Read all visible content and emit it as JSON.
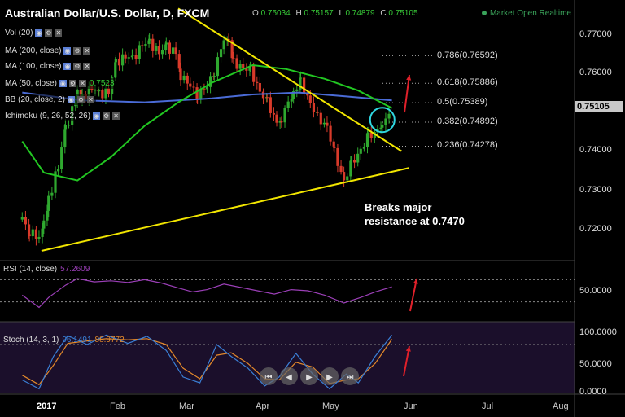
{
  "header": {
    "title": "Australian Dollar/U.S. Dollar, D, FXCM",
    "o_label": "O",
    "o": "0.75034",
    "h_label": "H",
    "h": "0.75157",
    "l_label": "L",
    "l": "0.74879",
    "c_label": "C",
    "c": "0.75105",
    "market_status": "Market Open Realtime"
  },
  "indicators": [
    {
      "label": "Vol (20)",
      "value": ""
    },
    {
      "label": "MA (200, close)",
      "value": ""
    },
    {
      "label": "MA (100, close)",
      "value": ""
    },
    {
      "label": "MA (50, close)",
      "value": "0.7523"
    },
    {
      "label": "BB (20, close, 2)",
      "value": ""
    },
    {
      "label": "Ichimoku (9, 26, 52, 26)",
      "value": ""
    }
  ],
  "rsi": {
    "label": "RSI (14, close)",
    "value": "57.2609"
  },
  "stoch": {
    "label": "Stoch (14, 3, 1)",
    "k": "96.1491",
    "d": "88.9772"
  },
  "fib_levels": [
    {
      "label": "0.786(0.76592)",
      "price": 0.76592
    },
    {
      "label": "0.618(0.75886)",
      "price": 0.75886
    },
    {
      "label": "0.5(0.75389)",
      "price": 0.75389
    },
    {
      "label": "0.382(0.74892)",
      "price": 0.74892
    },
    {
      "label": "0.236(0.74278)",
      "price": 0.74278
    }
  ],
  "annotation": {
    "line1": "Breaks major",
    "line2": "resistance at 0.7470"
  },
  "y_axis": {
    "labels": [
      "0.77000",
      "0.76000",
      "0.75000",
      "0.74000",
      "0.73000",
      "0.72000"
    ],
    "current": "0.75105"
  },
  "rsi_axis": {
    "labels": [
      "50.0000"
    ]
  },
  "stoch_axis": {
    "labels": [
      "100.0000",
      "50.0000",
      "0.0000"
    ]
  },
  "x_axis": {
    "labels": [
      "2017",
      "Feb",
      "Mar",
      "Apr",
      "May",
      "Jun",
      "Jul",
      "Aug"
    ]
  },
  "colors": {
    "up": "#2fa82f",
    "down": "#d83a2a",
    "ma50": "#22c722",
    "ma100": "#4a6bd6",
    "trend": "#f2e600",
    "rsi": "#9b3fb7",
    "stoch_k": "#3a7fd6",
    "stoch_d": "#e3892b",
    "arrow": "#e0202a"
  },
  "chart_data": {
    "type": "candlestick",
    "title": "Australian Dollar/U.S. Dollar, D, FXCM",
    "ylim": [
      0.714,
      0.7755
    ],
    "x_range": [
      "2017-01-01",
      "2017-08-10"
    ],
    "trendlines": [
      {
        "name": "descending resistance",
        "from": [
          "2017-03-01",
          0.778
        ],
        "to": [
          "2017-06-02",
          0.7415
        ]
      },
      {
        "name": "ascending support",
        "from": [
          "2017-01-03",
          0.716
        ],
        "to": [
          "2017-06-05",
          0.7372
        ]
      }
    ],
    "close_path": [
      [
        "2016-12-26",
        0.724
      ],
      [
        "2016-12-29",
        0.721
      ],
      [
        "2017-01-02",
        0.719
      ],
      [
        "2017-01-04",
        0.7225
      ],
      [
        "2017-01-06",
        0.729
      ],
      [
        "2017-01-10",
        0.738
      ],
      [
        "2017-01-13",
        0.747
      ],
      [
        "2017-01-18",
        0.756
      ],
      [
        "2017-01-20",
        0.755
      ],
      [
        "2017-01-24",
        0.758
      ],
      [
        "2017-01-27",
        0.756
      ],
      [
        "2017-01-31",
        0.757
      ],
      [
        "2017-02-03",
        0.764
      ],
      [
        "2017-02-07",
        0.766
      ],
      [
        "2017-02-10",
        0.765
      ],
      [
        "2017-02-14",
        0.769
      ],
      [
        "2017-02-17",
        0.769
      ],
      [
        "2017-02-21",
        0.767
      ],
      [
        "2017-02-24",
        0.768
      ],
      [
        "2017-02-28",
        0.767
      ],
      [
        "2017-03-02",
        0.761
      ],
      [
        "2017-03-06",
        0.758
      ],
      [
        "2017-03-09",
        0.756
      ],
      [
        "2017-03-13",
        0.758
      ],
      [
        "2017-03-16",
        0.762
      ],
      [
        "2017-03-20",
        0.77
      ],
      [
        "2017-03-22",
        0.769
      ],
      [
        "2017-03-24",
        0.764
      ],
      [
        "2017-03-28",
        0.763
      ],
      [
        "2017-03-31",
        0.762
      ],
      [
        "2017-04-04",
        0.757
      ],
      [
        "2017-04-07",
        0.754
      ],
      [
        "2017-04-11",
        0.749
      ],
      [
        "2017-04-13",
        0.75
      ],
      [
        "2017-04-18",
        0.757
      ],
      [
        "2017-04-21",
        0.759
      ],
      [
        "2017-04-25",
        0.754
      ],
      [
        "2017-04-28",
        0.75
      ],
      [
        "2017-05-02",
        0.748
      ],
      [
        "2017-05-05",
        0.741
      ],
      [
        "2017-05-09",
        0.734
      ],
      [
        "2017-05-12",
        0.738
      ],
      [
        "2017-05-16",
        0.742
      ],
      [
        "2017-05-19",
        0.745
      ],
      [
        "2017-05-23",
        0.747
      ],
      [
        "2017-05-25",
        0.749
      ],
      [
        "2017-05-29",
        0.751
      ]
    ],
    "ma50": [
      [
        "2016-12-26",
        0.744
      ],
      [
        "2017-01-04",
        0.736
      ],
      [
        "2017-01-18",
        0.734
      ],
      [
        "2017-02-01",
        0.74
      ],
      [
        "2017-02-15",
        0.748
      ],
      [
        "2017-03-01",
        0.754
      ],
      [
        "2017-03-15",
        0.759
      ],
      [
        "2017-04-01",
        0.7635
      ],
      [
        "2017-04-15",
        0.7625
      ],
      [
        "2017-05-01",
        0.76
      ],
      [
        "2017-05-15",
        0.757
      ],
      [
        "2017-05-29",
        0.7525
      ]
    ],
    "ma100": [
      [
        "2016-12-26",
        0.7565
      ],
      [
        "2017-01-20",
        0.7545
      ],
      [
        "2017-02-15",
        0.754
      ],
      [
        "2017-03-15",
        0.755
      ],
      [
        "2017-04-01",
        0.756
      ],
      [
        "2017-04-20",
        0.7565
      ],
      [
        "2017-05-10",
        0.7555
      ],
      [
        "2017-05-29",
        0.7545
      ]
    ],
    "rsi": {
      "ylim": [
        0,
        100
      ],
      "values": [
        [
          "2016-12-26",
          42
        ],
        [
          "2017-01-02",
          20
        ],
        [
          "2017-01-06",
          38
        ],
        [
          "2017-01-13",
          60
        ],
        [
          "2017-01-18",
          72
        ],
        [
          "2017-01-25",
          66
        ],
        [
          "2017-02-01",
          68
        ],
        [
          "2017-02-08",
          65
        ],
        [
          "2017-02-15",
          70
        ],
        [
          "2017-02-22",
          64
        ],
        [
          "2017-03-01",
          55
        ],
        [
          "2017-03-07",
          48
        ],
        [
          "2017-03-13",
          52
        ],
        [
          "2017-03-20",
          62
        ],
        [
          "2017-03-27",
          56
        ],
        [
          "2017-04-03",
          50
        ],
        [
          "2017-04-10",
          44
        ],
        [
          "2017-04-17",
          52
        ],
        [
          "2017-04-24",
          50
        ],
        [
          "2017-05-01",
          42
        ],
        [
          "2017-05-09",
          28
        ],
        [
          "2017-05-16",
          38
        ],
        [
          "2017-05-22",
          48
        ],
        [
          "2017-05-29",
          57
        ]
      ]
    },
    "stoch": {
      "ylim": [
        0,
        100
      ],
      "k": [
        [
          "2016-12-26",
          20
        ],
        [
          "2017-01-02",
          5
        ],
        [
          "2017-01-08",
          60
        ],
        [
          "2017-01-14",
          95
        ],
        [
          "2017-01-22",
          80
        ],
        [
          "2017-01-30",
          96
        ],
        [
          "2017-02-08",
          82
        ],
        [
          "2017-02-16",
          94
        ],
        [
          "2017-02-24",
          70
        ],
        [
          "2017-03-03",
          25
        ],
        [
          "2017-03-10",
          15
        ],
        [
          "2017-03-17",
          80
        ],
        [
          "2017-03-23",
          60
        ],
        [
          "2017-03-30",
          40
        ],
        [
          "2017-04-06",
          10
        ],
        [
          "2017-04-12",
          25
        ],
        [
          "2017-04-19",
          65
        ],
        [
          "2017-04-26",
          30
        ],
        [
          "2017-05-03",
          5
        ],
        [
          "2017-05-10",
          30
        ],
        [
          "2017-05-15",
          15
        ],
        [
          "2017-05-22",
          60
        ],
        [
          "2017-05-29",
          96
        ]
      ],
      "d": [
        [
          "2016-12-26",
          28
        ],
        [
          "2017-01-02",
          12
        ],
        [
          "2017-01-08",
          45
        ],
        [
          "2017-01-14",
          82
        ],
        [
          "2017-01-22",
          86
        ],
        [
          "2017-01-30",
          90
        ],
        [
          "2017-02-08",
          88
        ],
        [
          "2017-02-16",
          90
        ],
        [
          "2017-02-24",
          80
        ],
        [
          "2017-03-03",
          40
        ],
        [
          "2017-03-10",
          22
        ],
        [
          "2017-03-17",
          62
        ],
        [
          "2017-03-23",
          66
        ],
        [
          "2017-03-30",
          48
        ],
        [
          "2017-04-06",
          22
        ],
        [
          "2017-04-12",
          20
        ],
        [
          "2017-04-19",
          50
        ],
        [
          "2017-04-26",
          42
        ],
        [
          "2017-05-03",
          14
        ],
        [
          "2017-05-10",
          20
        ],
        [
          "2017-05-15",
          22
        ],
        [
          "2017-05-22",
          48
        ],
        [
          "2017-05-29",
          89
        ]
      ]
    }
  }
}
